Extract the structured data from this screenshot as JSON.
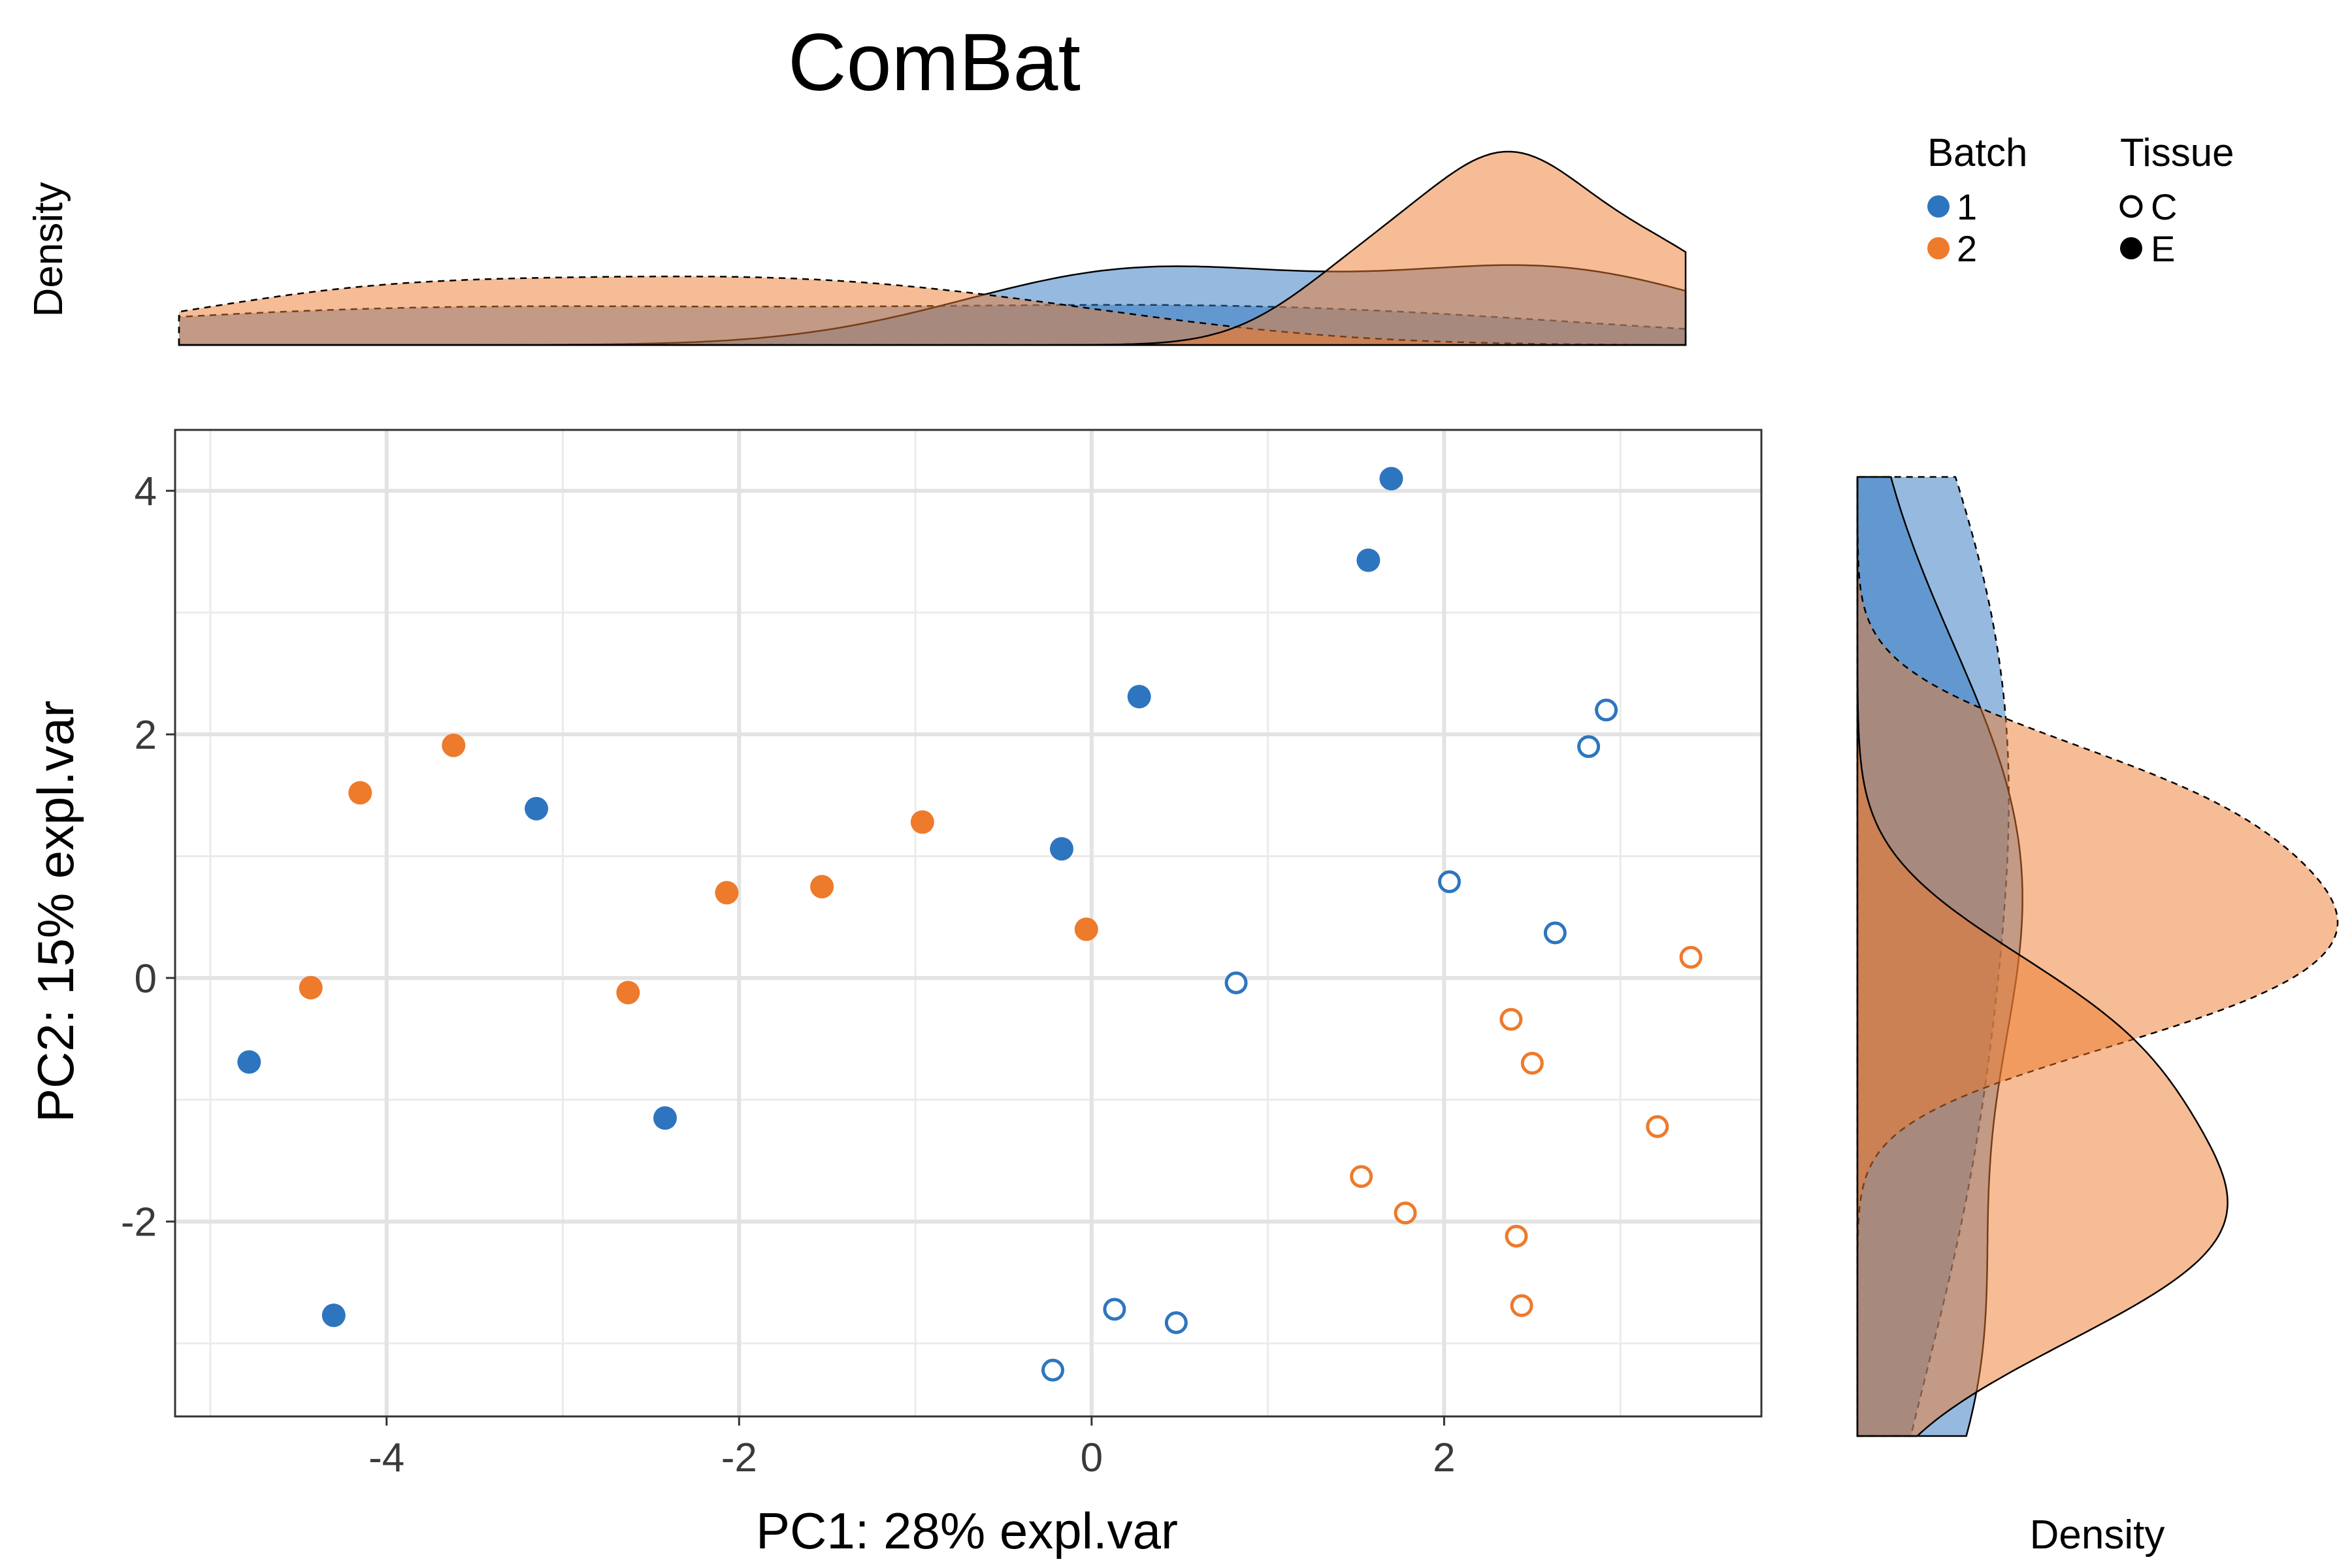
{
  "chart_data": {
    "type": "scatter",
    "title": "ComBat",
    "xlabel": "PC1: 28% expl.var",
    "ylabel": "PC2: 15% expl.var",
    "xlim": [
      -5.2,
      3.8
    ],
    "ylim": [
      -3.6,
      4.5
    ],
    "xticks": [
      -4,
      -2,
      0,
      2
    ],
    "yticks": [
      -2,
      0,
      2,
      4
    ],
    "xtick_labels": [
      "-4",
      "-2",
      "0",
      "2"
    ],
    "ytick_labels": [
      "-2",
      "0",
      "2",
      "4"
    ],
    "grid": true,
    "marginal_density_label": "Density",
    "legend": {
      "placement": "top-right",
      "batch_title": "Batch",
      "tissue_title": "Tissue",
      "batch_items": [
        {
          "label": "1",
          "color": "#2e75bf"
        },
        {
          "label": "2",
          "color": "#ee7a2c"
        }
      ],
      "tissue_items": [
        {
          "label": "C",
          "shape": "open-circle"
        },
        {
          "label": "E",
          "shape": "filled-circle"
        }
      ]
    },
    "series": [
      {
        "batch": "1",
        "tissue": "E",
        "color": "#2e75bf",
        "filled": true,
        "points": [
          [
            1.7,
            4.1
          ],
          [
            1.57,
            3.43
          ],
          [
            0.27,
            2.31
          ],
          [
            -3.15,
            1.39
          ],
          [
            -0.17,
            1.06
          ],
          [
            -4.78,
            -0.69
          ],
          [
            -2.42,
            -1.15
          ],
          [
            -4.3,
            -2.77
          ]
        ]
      },
      {
        "batch": "1",
        "tissue": "C",
        "color": "#2e75bf",
        "filled": false,
        "points": [
          [
            2.92,
            2.2
          ],
          [
            2.82,
            1.9
          ],
          [
            2.03,
            0.79
          ],
          [
            2.63,
            0.37
          ],
          [
            0.82,
            -0.04
          ],
          [
            0.13,
            -2.72
          ],
          [
            0.48,
            -2.83
          ],
          [
            -0.22,
            -3.22
          ]
        ]
      },
      {
        "batch": "2",
        "tissue": "E",
        "color": "#ee7a2c",
        "filled": true,
        "points": [
          [
            -3.62,
            1.91
          ],
          [
            -4.15,
            1.52
          ],
          [
            -0.96,
            1.28
          ],
          [
            -2.07,
            0.7
          ],
          [
            -1.53,
            0.75
          ],
          [
            -0.03,
            0.4
          ],
          [
            -4.43,
            -0.08
          ],
          [
            -2.63,
            -0.12
          ]
        ]
      },
      {
        "batch": "2",
        "tissue": "C",
        "color": "#ee7a2c",
        "filled": false,
        "points": [
          [
            3.4,
            0.17
          ],
          [
            2.38,
            -0.34
          ],
          [
            2.5,
            -0.7
          ],
          [
            3.21,
            -1.22
          ],
          [
            1.53,
            -1.63
          ],
          [
            1.78,
            -1.93
          ],
          [
            2.41,
            -2.12
          ],
          [
            2.44,
            -2.69
          ]
        ]
      }
    ],
    "density_top": [
      {
        "batch": "1",
        "tissue": "E",
        "color": "#2e75bf",
        "fill_opacity": 0.5,
        "line": "dashed"
      },
      {
        "batch": "1",
        "tissue": "C",
        "color": "#2e75bf",
        "fill_opacity": 0.5,
        "line": "solid"
      },
      {
        "batch": "2",
        "tissue": "E",
        "color": "#ee7a2c",
        "fill_opacity": 0.5,
        "line": "dashed"
      },
      {
        "batch": "2",
        "tissue": "C",
        "color": "#ee7a2c",
        "fill_opacity": 0.5,
        "line": "solid"
      }
    ],
    "density_right": [
      {
        "batch": "1",
        "tissue": "E",
        "color": "#2e75bf",
        "fill_opacity": 0.5,
        "line": "dashed"
      },
      {
        "batch": "1",
        "tissue": "C",
        "color": "#2e75bf",
        "fill_opacity": 0.5,
        "line": "solid"
      },
      {
        "batch": "2",
        "tissue": "E",
        "color": "#ee7a2c",
        "fill_opacity": 0.5,
        "line": "dashed"
      },
      {
        "batch": "2",
        "tissue": "C",
        "color": "#ee7a2c",
        "fill_opacity": 0.5,
        "line": "solid"
      }
    ]
  }
}
